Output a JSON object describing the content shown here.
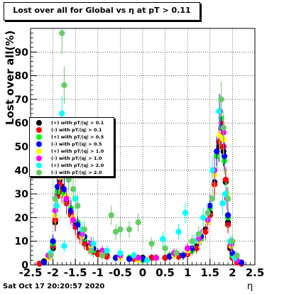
{
  "title": "Lost over all for Global vs   η at pT > 0.11",
  "xlabel": "η",
  "ylabel": "Lost over all(%)",
  "datestamp": "Sat Oct 17 20:20:57 2020",
  "chart_data": {
    "type": "scatter",
    "title": "Lost over all for Global vs   η at pT > 0.11",
    "xlabel": "η",
    "ylabel": "Lost over all(%)",
    "xlim": [
      -2.5,
      2.5
    ],
    "ylim": [
      0,
      100
    ],
    "xticks": [
      "-2.5",
      "-2",
      "-1.5",
      "-1",
      "-0.5",
      "0",
      "0.5",
      "1",
      "1.5",
      "2",
      "2.5"
    ],
    "yticks": [
      "0",
      "10",
      "20",
      "30",
      "40",
      "50",
      "60",
      "70",
      "80",
      "90"
    ],
    "grid": true,
    "legend_position": "left-middle",
    "series": [
      {
        "name": "(+) with pT/|q| > 0.1",
        "color": "#000000",
        "points": [
          [
            -2.3,
            0.5
          ],
          [
            -2.2,
            1.5
          ],
          [
            -2.1,
            4
          ],
          [
            -2.0,
            7
          ],
          [
            -1.95,
            18
          ],
          [
            -1.9,
            30
          ],
          [
            -1.85,
            36
          ],
          [
            -1.8,
            33
          ],
          [
            -1.7,
            27
          ],
          [
            -1.6,
            22
          ],
          [
            -1.5,
            17
          ],
          [
            -1.4,
            13
          ],
          [
            -1.3,
            10
          ],
          [
            -1.2,
            8
          ],
          [
            -1.1,
            6
          ],
          [
            -1.0,
            5
          ],
          [
            -0.8,
            4
          ],
          [
            -0.5,
            3
          ],
          [
            -0.2,
            3
          ],
          [
            0.0,
            3
          ],
          [
            0.2,
            3
          ],
          [
            0.5,
            3
          ],
          [
            0.8,
            4
          ],
          [
            1.0,
            5
          ],
          [
            1.2,
            8
          ],
          [
            1.4,
            15
          ],
          [
            1.5,
            22
          ],
          [
            1.6,
            35
          ],
          [
            1.7,
            50
          ],
          [
            1.75,
            58
          ],
          [
            1.8,
            48
          ],
          [
            1.85,
            35
          ],
          [
            1.9,
            18
          ],
          [
            1.95,
            7
          ],
          [
            2.0,
            3
          ],
          [
            2.1,
            1.5
          ],
          [
            2.2,
            0.5
          ]
        ]
      },
      {
        "name": "(-) with pT/|q| > 0.1",
        "color": "#ff0000",
        "points": [
          [
            -2.3,
            0.5
          ],
          [
            -2.2,
            1
          ],
          [
            -2.1,
            3
          ],
          [
            -2.0,
            8
          ],
          [
            -1.95,
            19
          ],
          [
            -1.9,
            29
          ],
          [
            -1.85,
            34
          ],
          [
            -1.8,
            31
          ],
          [
            -1.7,
            26
          ],
          [
            -1.6,
            21
          ],
          [
            -1.5,
            16
          ],
          [
            -1.4,
            12
          ],
          [
            -1.3,
            9
          ],
          [
            -1.2,
            7
          ],
          [
            -1.1,
            5.5
          ],
          [
            -1.0,
            4.5
          ],
          [
            -0.8,
            3.5
          ],
          [
            -0.5,
            3
          ],
          [
            -0.2,
            2.5
          ],
          [
            0.0,
            2.5
          ],
          [
            0.2,
            3
          ],
          [
            0.5,
            3
          ],
          [
            0.8,
            3.5
          ],
          [
            1.0,
            4.5
          ],
          [
            1.2,
            7
          ],
          [
            1.4,
            14
          ],
          [
            1.5,
            21
          ],
          [
            1.6,
            34
          ],
          [
            1.7,
            52
          ],
          [
            1.75,
            60
          ],
          [
            1.8,
            50
          ],
          [
            1.85,
            36
          ],
          [
            1.9,
            17
          ],
          [
            1.95,
            8
          ],
          [
            2.0,
            3
          ],
          [
            2.1,
            1
          ],
          [
            2.2,
            0.5
          ]
        ]
      },
      {
        "name": "(+) with pT/|q| > 0.5",
        "color": "#00ff00",
        "points": [
          [
            -2.2,
            1
          ],
          [
            -2.0,
            9
          ],
          [
            -1.9,
            31
          ],
          [
            -1.85,
            38
          ],
          [
            -1.75,
            30
          ],
          [
            -1.6,
            24
          ],
          [
            -1.45,
            18
          ],
          [
            -1.3,
            11
          ],
          [
            -1.1,
            6
          ],
          [
            -0.9,
            4
          ],
          [
            -0.6,
            3
          ],
          [
            -0.3,
            3
          ],
          [
            0.0,
            2
          ],
          [
            0.3,
            3
          ],
          [
            0.6,
            4
          ],
          [
            0.9,
            4
          ],
          [
            1.1,
            6
          ],
          [
            1.3,
            11
          ],
          [
            1.5,
            24
          ],
          [
            1.65,
            46
          ],
          [
            1.75,
            62
          ],
          [
            1.82,
            44
          ],
          [
            1.9,
            20
          ],
          [
            2.0,
            4
          ],
          [
            2.2,
            1
          ]
        ]
      },
      {
        "name": "(-) with pT/|q| > 0.5",
        "color": "#0000ff",
        "points": [
          [
            -2.2,
            1
          ],
          [
            -2.0,
            10
          ],
          [
            -1.9,
            33
          ],
          [
            -1.85,
            40
          ],
          [
            -1.75,
            32
          ],
          [
            -1.6,
            23
          ],
          [
            -1.45,
            17
          ],
          [
            -1.3,
            12
          ],
          [
            -1.1,
            7
          ],
          [
            -0.9,
            5
          ],
          [
            -0.6,
            3
          ],
          [
            -0.3,
            2.5
          ],
          [
            0.0,
            2.5
          ],
          [
            0.3,
            3
          ],
          [
            0.6,
            3.5
          ],
          [
            0.9,
            4
          ],
          [
            1.1,
            7
          ],
          [
            1.3,
            12
          ],
          [
            1.5,
            25
          ],
          [
            1.65,
            48
          ],
          [
            1.75,
            58
          ],
          [
            1.82,
            46
          ],
          [
            1.9,
            21
          ],
          [
            2.0,
            5
          ],
          [
            2.2,
            1
          ]
        ]
      },
      {
        "name": "(+) with pT/|q| > 1.0",
        "color": "#ffff00",
        "points": [
          [
            -2.1,
            3
          ],
          [
            -1.95,
            21
          ],
          [
            -1.85,
            37
          ],
          [
            -1.7,
            29
          ],
          [
            -1.55,
            20
          ],
          [
            -1.35,
            12
          ],
          [
            -1.15,
            8
          ],
          [
            -0.9,
            5
          ],
          [
            -0.5,
            3
          ],
          [
            -0.1,
            2
          ],
          [
            0.3,
            3
          ],
          [
            0.7,
            4
          ],
          [
            1.0,
            6
          ],
          [
            1.25,
            10
          ],
          [
            1.45,
            18
          ],
          [
            1.6,
            38
          ],
          [
            1.72,
            55
          ],
          [
            1.8,
            53
          ],
          [
            1.88,
            30
          ],
          [
            1.98,
            8
          ],
          [
            2.1,
            2
          ]
        ]
      },
      {
        "name": "(-) with pT/|q| > 1.0",
        "color": "#ff00ff",
        "points": [
          [
            -2.1,
            4
          ],
          [
            -1.95,
            23
          ],
          [
            -1.85,
            39
          ],
          [
            -1.7,
            28
          ],
          [
            -1.55,
            19
          ],
          [
            -1.35,
            13
          ],
          [
            -1.15,
            9
          ],
          [
            -0.9,
            6
          ],
          [
            -0.5,
            4
          ],
          [
            -0.1,
            3
          ],
          [
            0.3,
            3
          ],
          [
            0.7,
            5
          ],
          [
            1.0,
            7
          ],
          [
            1.25,
            11
          ],
          [
            1.45,
            19
          ],
          [
            1.6,
            40
          ],
          [
            1.72,
            65
          ],
          [
            1.8,
            56
          ],
          [
            1.88,
            28
          ],
          [
            1.98,
            9
          ],
          [
            2.1,
            2
          ]
        ]
      },
      {
        "name": "(+) with pT/|q| > 2.0",
        "color": "#00ffff",
        "points": [
          [
            -2.05,
            5
          ],
          [
            -1.92,
            25
          ],
          [
            -1.8,
            64
          ],
          [
            -1.75,
            8
          ],
          [
            -1.65,
            38
          ],
          [
            -1.5,
            28
          ],
          [
            -1.35,
            15
          ],
          [
            -1.1,
            9
          ],
          [
            -0.8,
            6
          ],
          [
            -0.5,
            5
          ],
          [
            -0.2,
            4
          ],
          [
            0.1,
            2
          ],
          [
            0.45,
            11
          ],
          [
            0.8,
            14
          ],
          [
            0.95,
            22
          ],
          [
            1.15,
            10
          ],
          [
            1.35,
            20
          ],
          [
            1.55,
            40
          ],
          [
            1.7,
            65
          ],
          [
            1.78,
            26
          ],
          [
            1.85,
            30
          ],
          [
            1.95,
            10
          ],
          [
            2.05,
            3
          ]
        ]
      },
      {
        "name": "(-) with pT/|q| > 2.0",
        "color": "#66cc66",
        "points": [
          [
            -2.05,
            4
          ],
          [
            -1.95,
            28
          ],
          [
            -1.8,
            98
          ],
          [
            -1.75,
            76
          ],
          [
            -1.65,
            36
          ],
          [
            -1.55,
            32
          ],
          [
            -1.45,
            25
          ],
          [
            -1.3,
            15
          ],
          [
            -1.15,
            6
          ],
          [
            -0.9,
            4
          ],
          [
            -0.7,
            21
          ],
          [
            -0.6,
            14
          ],
          [
            -0.5,
            15
          ],
          [
            -0.3,
            15
          ],
          [
            -0.1,
            18
          ],
          [
            0.2,
            9
          ],
          [
            0.5,
            7
          ],
          [
            0.75,
            5
          ],
          [
            1.1,
            10
          ],
          [
            1.25,
            13
          ],
          [
            1.45,
            22
          ],
          [
            1.55,
            28
          ],
          [
            1.75,
            70
          ],
          [
            1.8,
            58
          ],
          [
            1.9,
            28
          ],
          [
            2.0,
            10
          ],
          [
            2.1,
            4
          ]
        ]
      }
    ]
  }
}
